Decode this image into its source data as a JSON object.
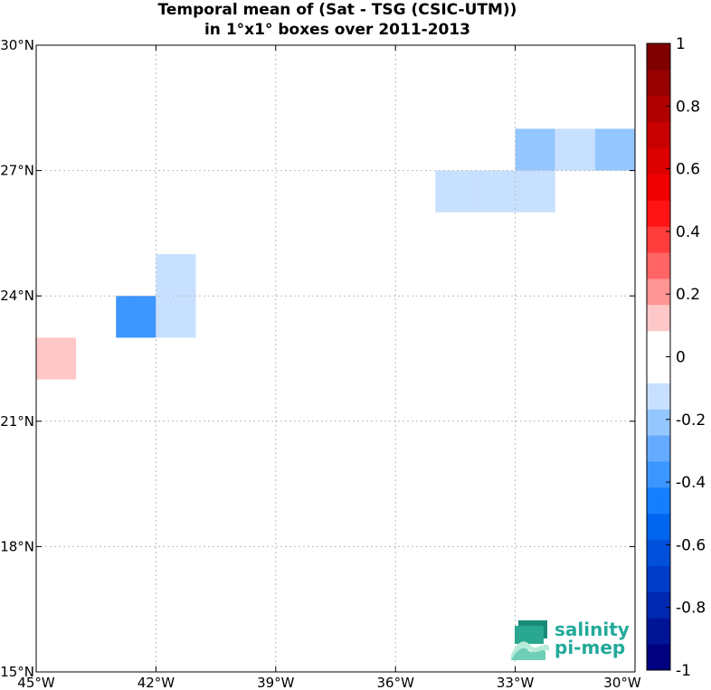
{
  "title": {
    "line1": "Temporal mean of (Sat - TSG (CSIC-UTM))",
    "line2": "in 1°x1° boxes over 2011-2013"
  },
  "chart_data": {
    "type": "heatmap",
    "xlim": [
      -45,
      -30
    ],
    "ylim": [
      15,
      30
    ],
    "x_ticks": [
      -45,
      -42,
      -39,
      -36,
      -33,
      -30
    ],
    "y_ticks": [
      15,
      18,
      21,
      24,
      27,
      30
    ],
    "x_tick_labels": [
      "45°W",
      "42°W",
      "39°W",
      "36°W",
      "33°W",
      "30°W"
    ],
    "y_tick_labels": [
      "15°N",
      "18°N",
      "21°N",
      "24°N",
      "27°N",
      "30°N"
    ],
    "grid": true,
    "cells": [
      {
        "lon": [
          -45,
          -44
        ],
        "lat": [
          22,
          23
        ],
        "value": 0.15
      },
      {
        "lon": [
          -43,
          -42
        ],
        "lat": [
          23,
          24
        ],
        "value": -0.35
      },
      {
        "lon": [
          -42,
          -41
        ],
        "lat": [
          23,
          24
        ],
        "value": -0.15
      },
      {
        "lon": [
          -42,
          -41
        ],
        "lat": [
          24,
          25
        ],
        "value": -0.15
      },
      {
        "lon": [
          -35,
          -34
        ],
        "lat": [
          26,
          27
        ],
        "value": -0.15
      },
      {
        "lon": [
          -34,
          -33
        ],
        "lat": [
          26,
          27
        ],
        "value": -0.15
      },
      {
        "lon": [
          -33,
          -32
        ],
        "lat": [
          26,
          27
        ],
        "value": -0.15
      },
      {
        "lon": [
          -33,
          -32
        ],
        "lat": [
          27,
          28
        ],
        "value": -0.25
      },
      {
        "lon": [
          -32,
          -31
        ],
        "lat": [
          27,
          28
        ],
        "value": -0.15
      },
      {
        "lon": [
          -31,
          -30
        ],
        "lat": [
          27,
          28
        ],
        "value": -0.25
      }
    ],
    "colorbar": {
      "range": [
        -1,
        1
      ],
      "ticks": [
        -1,
        -0.8,
        -0.6,
        -0.4,
        -0.2,
        0,
        0.2,
        0.4,
        0.6,
        0.8,
        1
      ],
      "tick_labels": [
        "-1",
        "-0.8",
        "-0.6",
        "-0.4",
        "-0.2",
        "0",
        "0.2",
        "0.4",
        "0.6",
        "0.8",
        "1"
      ],
      "colors": [
        "#000080",
        "#001496",
        "#0028b0",
        "#003cc8",
        "#0050dc",
        "#0066f0",
        "#1480ff",
        "#3c96ff",
        "#64aaff",
        "#94c6ff",
        "#c8e0ff",
        "#ffffff",
        "#ffffff",
        "#ffc8c8",
        "#ff9494",
        "#ff6464",
        "#ff3c3c",
        "#ff1414",
        "#f00000",
        "#dc0000",
        "#c80000",
        "#b00000",
        "#960000",
        "#800000"
      ]
    }
  },
  "logo": {
    "line1": "salinity",
    "line2": "pi-mep"
  }
}
